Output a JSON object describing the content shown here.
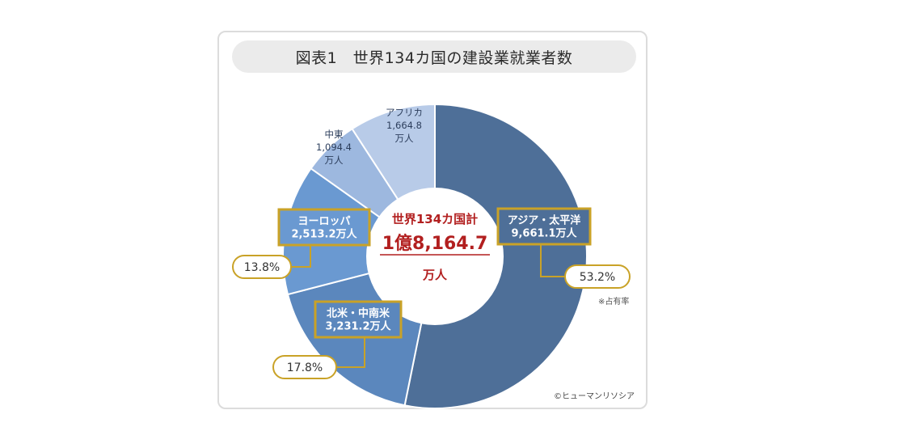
{
  "title": "図表1　世界134カ国の建設業就業者数",
  "center": {
    "line1": "世界134カ国計",
    "total": "1億8,164.7",
    "unit": "万人"
  },
  "share_note": "※占有率",
  "credit": "©ヒューマンリソシア",
  "colors": {
    "accent_red": "#b21f1f",
    "callout_border": "#c9a227",
    "slices": [
      "#4e6f98",
      "#5b87bd",
      "#6a99d1",
      "#9db8df",
      "#b8cbe8"
    ]
  },
  "chart_data": {
    "type": "pie",
    "style": "donut",
    "title": "図表1　世界134カ国の建設業就業者数",
    "unit": "万人",
    "total": 18164.7,
    "slices": [
      {
        "name": "アジア・太平洋",
        "value": 9661.1,
        "value_label": "9,661.1万人",
        "share": 53.2,
        "share_label": "53.2%"
      },
      {
        "name": "北米・中南米",
        "value": 3231.2,
        "value_label": "3,231.2万人",
        "share": 17.8,
        "share_label": "17.8%"
      },
      {
        "name": "ヨーロッパ",
        "value": 2513.2,
        "value_label": "2,513.2万人",
        "share": 13.8,
        "share_label": "13.8%"
      },
      {
        "name": "中東",
        "value": 1094.4,
        "value_lines": [
          "1,094.4",
          "万人"
        ]
      },
      {
        "name": "アフリカ",
        "value": 1664.8,
        "value_lines": [
          "1,664.8",
          "万人"
        ]
      }
    ]
  }
}
